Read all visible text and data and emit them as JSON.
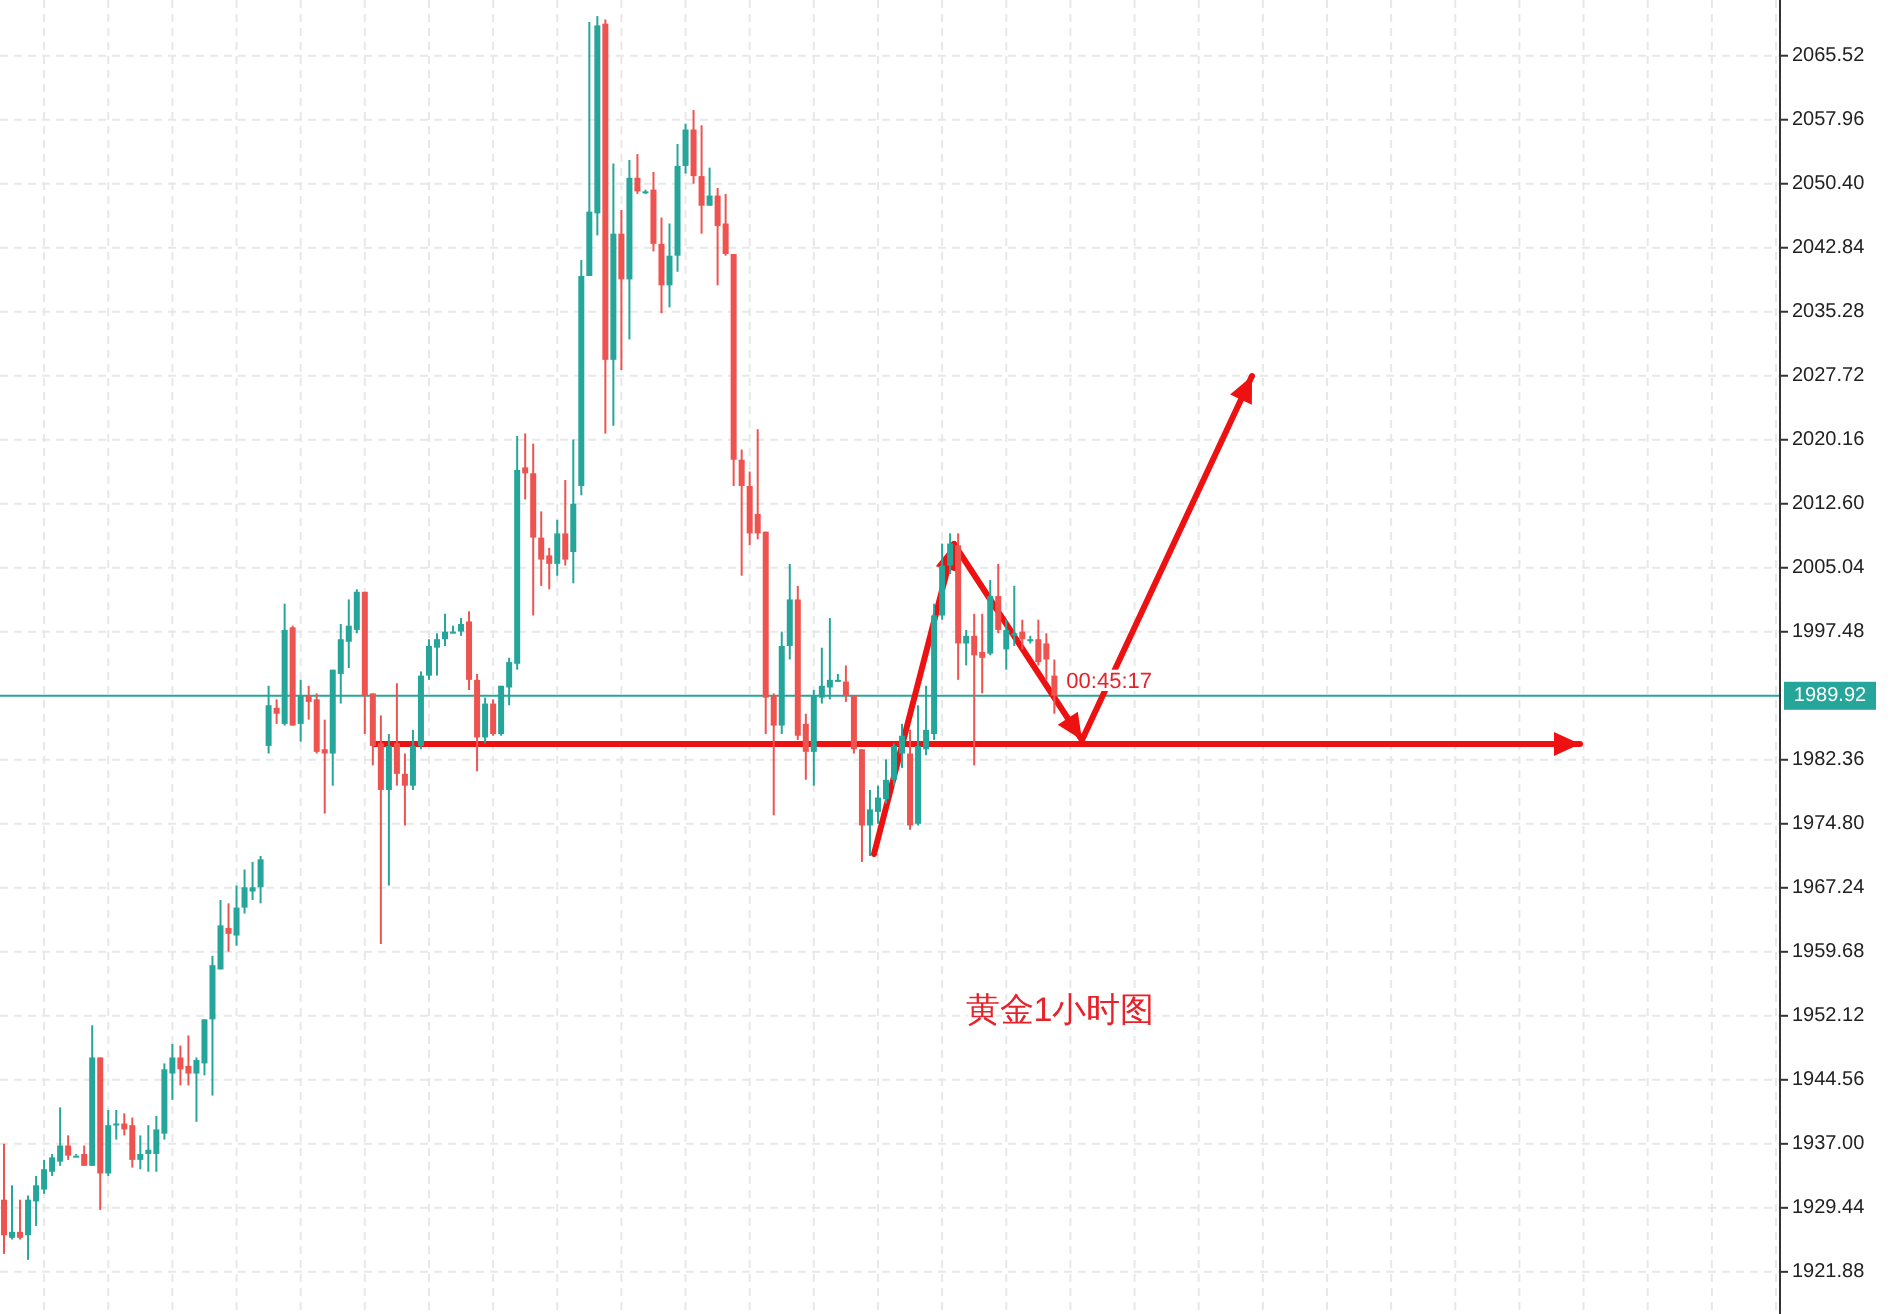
{
  "chart_data": {
    "type": "candlestick",
    "categories": [
      null,
      null,
      null,
      null,
      null,
      null,
      null,
      null,
      null,
      null,
      null,
      null,
      null,
      null,
      null,
      null,
      null,
      null,
      null,
      null,
      null,
      null,
      null,
      null,
      null,
      null,
      null,
      null,
      null,
      null,
      null,
      null,
      null,
      null,
      null,
      null,
      null,
      null,
      null,
      null,
      null,
      null,
      null,
      null,
      null,
      null,
      null,
      null,
      null,
      null,
      null,
      null,
      null,
      null,
      null,
      null,
      null,
      null,
      null,
      null,
      null,
      null,
      null,
      null,
      null,
      null,
      null,
      null,
      null,
      null,
      null,
      null,
      null,
      null,
      null,
      null,
      null,
      null,
      null,
      null,
      null,
      null,
      null,
      null,
      null,
      null,
      null,
      null,
      null,
      null,
      null,
      null,
      null,
      null,
      null,
      null,
      null,
      null,
      null,
      null,
      null,
      null,
      null,
      null,
      null,
      null,
      null,
      null,
      null,
      null,
      null,
      null,
      null,
      null,
      null,
      null,
      null,
      null,
      null,
      null,
      null,
      null,
      null,
      null,
      null,
      null,
      null,
      null,
      null,
      null,
      null,
      null,
      null,
      null,
      null,
      null,
      null,
      null,
      null,
      null,
      null,
      null,
      null,
      null,
      null,
      null,
      null,
      null,
      null,
      null,
      null,
      null,
      null,
      null,
      null,
      null,
      null,
      null,
      null,
      null,
      null,
      null,
      null,
      null,
      null,
      null,
      null,
      null,
      null,
      null,
      null,
      null,
      null,
      null,
      null,
      null,
      null,
      null,
      null,
      null,
      null,
      null,
      null,
      null,
      null,
      null,
      null,
      null,
      null,
      null,
      null,
      null,
      null,
      null,
      null,
      null,
      null,
      null,
      null,
      null,
      null,
      null,
      null,
      null,
      null,
      null,
      null,
      null,
      null,
      null,
      null,
      null,
      null,
      null,
      null,
      null,
      null,
      null,
      null,
      null,
      null,
      null
    ],
    "ohlc": [
      [
        1930.4,
        1937.0,
        1924.0,
        1926.2
      ],
      [
        1925.9,
        1932.1,
        1925.7,
        1926.6
      ],
      [
        1926.6,
        1930.4,
        1925.7,
        1925.9
      ],
      [
        1926.2,
        1930.9,
        1923.3,
        1930.4
      ],
      [
        1930.2,
        1933.2,
        1927.3,
        1932.1
      ],
      [
        1931.6,
        1935.1,
        1931.1,
        1934.0
      ],
      [
        1933.7,
        1935.8,
        1933.2,
        1935.4
      ],
      [
        1934.9,
        1941.3,
        1934.4,
        1936.8
      ],
      [
        1936.8,
        1938.0,
        1935.1,
        1935.6
      ],
      [
        1935.6,
        1935.8,
        1935.6,
        1935.6
      ],
      [
        1935.8,
        1936.8,
        1934.4,
        1934.4
      ],
      [
        1934.4,
        1951.0,
        1934.4,
        1947.2
      ],
      [
        1947.2,
        1947.2,
        1929.2,
        1933.5
      ],
      [
        1933.5,
        1941.0,
        1933.2,
        1939.2
      ],
      [
        1939.2,
        1941.0,
        1937.5,
        1939.4
      ],
      [
        1939.4,
        1940.6,
        1938.0,
        1938.7
      ],
      [
        1939.2,
        1940.1,
        1934.2,
        1935.1
      ],
      [
        1935.1,
        1938.0,
        1934.0,
        1935.8
      ],
      [
        1935.8,
        1939.2,
        1933.7,
        1936.3
      ],
      [
        1935.8,
        1940.3,
        1933.7,
        1938.7
      ],
      [
        1938.2,
        1946.5,
        1937.5,
        1945.8
      ],
      [
        1945.3,
        1948.8,
        1942.2,
        1947.2
      ],
      [
        1947.2,
        1948.6,
        1943.9,
        1945.8
      ],
      [
        1946.2,
        1949.8,
        1943.9,
        1945.3
      ],
      [
        1945.3,
        1947.2,
        1939.6,
        1946.9
      ],
      [
        1946.5,
        1951.7,
        1945.1,
        1951.7
      ],
      [
        1951.7,
        1959.2,
        1942.7,
        1958.1
      ],
      [
        1957.6,
        1965.8,
        1957.6,
        1962.8
      ],
      [
        1962.5,
        1965.4,
        1959.7,
        1961.8
      ],
      [
        1961.6,
        1967.5,
        1960.4,
        1964.9
      ],
      [
        1964.9,
        1969.4,
        1964.2,
        1967.3
      ],
      [
        1966.8,
        1970.3,
        1965.8,
        1967.3
      ],
      [
        1967.3,
        1971.0,
        1965.4,
        1970.6
      ],
      [
        1984.0,
        1991.1,
        1983.1,
        1988.8
      ],
      [
        1988.5,
        1989.5,
        1986.6,
        1987.8
      ],
      [
        1986.6,
        2000.8,
        1986.4,
        1997.7
      ],
      [
        1998.0,
        1998.2,
        1986.4,
        1986.4
      ],
      [
        1986.6,
        1991.8,
        1984.5,
        1989.9
      ],
      [
        1989.9,
        1991.1,
        1987.1,
        1989.2
      ],
      [
        1989.5,
        1990.2,
        1983.1,
        1983.3
      ],
      [
        1983.6,
        1987.1,
        1976.0,
        1983.1
      ],
      [
        1983.1,
        1993.0,
        1979.3,
        1993.0
      ],
      [
        1992.5,
        1998.4,
        1989.0,
        1996.6
      ],
      [
        1996.3,
        2001.3,
        1993.2,
        1998.2
      ],
      [
        1997.7,
        2002.5,
        1997.3,
        2002.2
      ],
      [
        2002.2,
        2002.2,
        1985.4,
        1989.9
      ],
      [
        1990.2,
        1990.2,
        1981.7,
        1984.0
      ],
      [
        1984.3,
        1987.6,
        1960.6,
        1978.8
      ],
      [
        1978.8,
        1985.4,
        1967.5,
        1984.0
      ],
      [
        1984.3,
        1991.4,
        1979.3,
        1980.7
      ],
      [
        1980.7,
        1983.1,
        1974.6,
        1979.3
      ],
      [
        1979.3,
        1985.9,
        1978.8,
        1984.0
      ],
      [
        1984.0,
        1992.8,
        1983.6,
        1992.3
      ],
      [
        1992.3,
        1996.6,
        1991.8,
        1995.8
      ],
      [
        1995.6,
        1997.3,
        1992.3,
        1996.6
      ],
      [
        1996.6,
        1999.6,
        1995.8,
        1997.5
      ],
      [
        1997.5,
        1998.2,
        1997.3,
        1997.5
      ],
      [
        1997.5,
        1999.1,
        1997.0,
        1998.4
      ],
      [
        1998.7,
        1999.9,
        1990.6,
        1991.8
      ],
      [
        1991.8,
        1992.5,
        1981.0,
        1985.0
      ],
      [
        1985.0,
        1989.7,
        1984.3,
        1989.0
      ],
      [
        1989.0,
        1989.5,
        1985.2,
        1985.4
      ],
      [
        1985.4,
        1991.1,
        1985.2,
        1991.1
      ],
      [
        1990.9,
        1994.4,
        1988.8,
        1993.9
      ],
      [
        1993.7,
        2020.6,
        1993.0,
        2016.6
      ],
      [
        2016.9,
        2020.9,
        2013.1,
        2016.2
      ],
      [
        2016.2,
        2019.7,
        1999.4,
        2008.6
      ],
      [
        2008.6,
        2011.7,
        2002.9,
        2006.0
      ],
      [
        2006.5,
        2007.4,
        2002.5,
        2005.5
      ],
      [
        2005.5,
        2010.7,
        2004.1,
        2009.1
      ],
      [
        2009.1,
        2015.4,
        2005.3,
        2006.0
      ],
      [
        2006.9,
        2020.2,
        2003.2,
        2012.6
      ],
      [
        2014.7,
        2041.4,
        2013.6,
        2039.5
      ],
      [
        2039.5,
        2069.5,
        2039.5,
        2047.1
      ],
      [
        2046.9,
        2070.2,
        2044.3,
        2069.1
      ],
      [
        2069.3,
        2069.8,
        2020.9,
        2029.6
      ],
      [
        2029.6,
        2052.8,
        2021.8,
        2044.5
      ],
      [
        2044.5,
        2047.3,
        2028.4,
        2039.1
      ],
      [
        2039.1,
        2053.2,
        2032.0,
        2051.1
      ],
      [
        2051.1,
        2053.9,
        2049.2,
        2049.5
      ],
      [
        2049.5,
        2049.7,
        2049.2,
        2049.5
      ],
      [
        2049.7,
        2051.8,
        2042.4,
        2043.3
      ],
      [
        2043.3,
        2046.4,
        2035.1,
        2038.4
      ],
      [
        2038.4,
        2045.7,
        2035.8,
        2041.9
      ],
      [
        2041.9,
        2055.1,
        2040.0,
        2052.5
      ],
      [
        2052.5,
        2057.5,
        2051.6,
        2056.8
      ],
      [
        2056.8,
        2059.1,
        2050.4,
        2051.3
      ],
      [
        2051.3,
        2057.3,
        2044.5,
        2047.8
      ],
      [
        2047.8,
        2052.3,
        2047.8,
        2049.0
      ],
      [
        2049.0,
        2049.9,
        2038.4,
        2045.4
      ],
      [
        2045.7,
        2049.2,
        2041.9,
        2042.1
      ],
      [
        2042.1,
        2042.1,
        2014.7,
        2017.8
      ],
      [
        2017.8,
        2019.0,
        2004.1,
        2014.7
      ],
      [
        2014.7,
        2016.4,
        2007.7,
        2009.1
      ],
      [
        2011.4,
        2021.4,
        2008.4,
        2009.1
      ],
      [
        2009.3,
        2009.3,
        1985.4,
        1989.7
      ],
      [
        1989.9,
        1990.2,
        1975.8,
        1986.4
      ],
      [
        1986.4,
        1997.5,
        1985.4,
        1995.8
      ],
      [
        1995.8,
        2005.5,
        1994.2,
        2001.3
      ],
      [
        2001.3,
        2002.9,
        1984.7,
        1985.2
      ],
      [
        1986.6,
        1987.8,
        1980.0,
        1983.3
      ],
      [
        1983.3,
        1990.6,
        1979.3,
        1989.9
      ],
      [
        1989.7,
        1995.6,
        1989.0,
        1991.1
      ],
      [
        1990.9,
        1999.1,
        1989.5,
        1991.8
      ],
      [
        1991.8,
        1992.5,
        1991.6,
        1991.8
      ],
      [
        1991.6,
        1993.5,
        1989.2,
        1989.9
      ],
      [
        1989.9,
        1989.9,
        1983.1,
        1983.6
      ],
      [
        1983.6,
        1983.6,
        1970.3,
        1974.6
      ],
      [
        1974.6,
        1978.8,
        1971.0,
        1976.5
      ],
      [
        1976.2,
        1979.3,
        1974.8,
        1977.9
      ],
      [
        1977.7,
        1982.4,
        1977.2,
        1980.0
      ],
      [
        1980.0,
        1984.3,
        1979.3,
        1984.0
      ],
      [
        1983.1,
        1986.6,
        1981.4,
        1985.2
      ],
      [
        1983.1,
        1985.9,
        1974.1,
        1974.6
      ],
      [
        1974.8,
        1988.8,
        1974.6,
        1984.0
      ],
      [
        1983.6,
        1991.1,
        1982.9,
        1985.9
      ],
      [
        1985.4,
        2000.8,
        1984.7,
        1999.4
      ],
      [
        1999.4,
        2007.9,
        1998.9,
        2005.3
      ],
      [
        2005.3,
        2009.1,
        2004.3,
        2007.9
      ],
      [
        2007.7,
        2009.1,
        1991.8,
        1996.1
      ],
      [
        1996.1,
        1997.7,
        1993.5,
        1997.0
      ],
      [
        1997.0,
        1999.6,
        1981.7,
        1994.7
      ],
      [
        1995.1,
        1999.6,
        1990.2,
        1994.4
      ],
      [
        1994.9,
        2003.6,
        1994.7,
        2001.7
      ],
      [
        2001.7,
        2005.5,
        1997.3,
        1997.7
      ],
      [
        1995.4,
        1998.9,
        1993.0,
        1997.7
      ],
      [
        1997.0,
        2002.9,
        1995.8,
        1997.3
      ],
      [
        1997.5,
        1998.9,
        1995.4,
        1996.6
      ],
      [
        1996.6,
        1997.0,
        1996.1,
        1996.6
      ],
      [
        1996.6,
        1998.9,
        1993.5,
        1993.9
      ],
      [
        1996.1,
        1997.3,
        1991.8,
        1994.2
      ],
      [
        1992.3,
        1994.2,
        1987.8,
        1989.92
      ],
      null,
      null,
      null,
      null,
      null,
      null,
      null,
      null,
      null,
      null,
      null,
      null,
      null,
      null,
      null,
      null,
      null,
      null,
      null,
      null,
      null,
      null,
      null,
      null,
      null,
      null,
      null,
      null,
      null,
      null,
      null,
      null,
      null,
      null,
      null,
      null,
      null,
      null,
      null,
      null,
      null,
      null,
      null,
      null,
      null,
      null,
      null,
      null,
      null,
      null,
      null,
      null,
      null,
      null,
      null,
      null,
      null,
      null,
      null,
      null,
      null,
      null,
      null,
      null,
      null,
      null,
      null,
      null,
      null,
      null,
      null,
      null,
      null,
      null,
      null,
      null,
      null,
      null,
      null,
      null,
      null,
      null,
      null,
      null,
      null,
      null,
      null,
      null,
      null,
      null
    ],
    "colors": [
      "#ef5350",
      "#26a69a",
      "#ef5350",
      "#26a69a",
      "#26a69a",
      "#26a69a",
      "#26a69a",
      "#26a69a",
      "#ef5350",
      "#26a69a",
      "#ef5350",
      "#26a69a",
      "#ef5350",
      "#26a69a",
      "#26a69a",
      "#ef5350",
      "#ef5350",
      "#26a69a",
      "#26a69a",
      "#26a69a",
      "#26a69a",
      "#26a69a",
      "#ef5350",
      "#ef5350",
      "#26a69a",
      "#26a69a",
      "#26a69a",
      "#26a69a",
      "#ef5350",
      "#26a69a",
      "#26a69a",
      "#26a69a",
      "#26a69a",
      "#26a69a",
      "#ef5350",
      "#26a69a",
      "#ef5350",
      "#26a69a",
      "#ef5350",
      "#ef5350",
      "#ef5350",
      "#26a69a",
      "#26a69a",
      "#26a69a",
      "#26a69a",
      "#ef5350",
      "#ef5350",
      "#ef5350",
      "#26a69a",
      "#ef5350",
      "#ef5350",
      "#26a69a",
      "#26a69a",
      "#26a69a",
      "#26a69a",
      "#26a69a",
      "#26a69a",
      "#26a69a",
      "#ef5350",
      "#ef5350",
      "#26a69a",
      "#ef5350",
      "#26a69a",
      "#26a69a",
      "#26a69a",
      "#ef5350",
      "#ef5350",
      "#ef5350",
      "#ef5350",
      "#26a69a",
      "#ef5350",
      "#26a69a",
      "#26a69a",
      "#26a69a",
      "#26a69a",
      "#ef5350",
      "#26a69a",
      "#ef5350",
      "#26a69a",
      "#ef5350",
      "#26a69a",
      "#ef5350",
      "#ef5350",
      "#26a69a",
      "#26a69a",
      "#26a69a",
      "#ef5350",
      "#ef5350",
      "#26a69a",
      "#ef5350",
      "#ef5350",
      "#ef5350",
      "#ef5350",
      "#ef5350",
      "#ef5350",
      "#ef5350",
      "#ef5350",
      "#26a69a",
      "#26a69a",
      "#ef5350",
      "#ef5350",
      "#26a69a",
      "#26a69a",
      "#26a69a",
      "#26a69a",
      "#ef5350",
      "#ef5350",
      "#ef5350",
      "#26a69a",
      "#26a69a",
      "#26a69a",
      "#26a69a",
      "#26a69a",
      "#ef5350",
      "#26a69a",
      "#26a69a",
      "#26a69a",
      "#26a69a",
      "#26a69a",
      "#ef5350",
      "#26a69a",
      "#ef5350",
      "#ef5350",
      "#26a69a",
      "#ef5350",
      "#26a69a",
      "#26a69a",
      "#ef5350",
      "#26a69a",
      "#ef5350",
      "#ef5350",
      "#ef5350",
      null,
      null,
      null,
      null,
      null,
      null,
      null,
      null,
      null,
      null,
      null,
      null,
      null,
      null,
      null,
      null,
      null,
      null,
      null,
      null,
      null,
      null,
      null,
      null,
      null,
      null,
      null,
      null,
      null,
      null,
      null,
      null,
      null,
      null,
      null,
      null,
      null,
      null,
      null,
      null,
      null,
      null,
      null,
      null,
      null,
      null,
      null,
      null,
      null,
      null,
      null,
      null,
      null,
      null,
      null,
      null,
      null,
      null,
      null,
      null,
      null,
      null,
      null,
      null,
      null,
      null,
      null,
      null,
      null,
      null,
      null,
      null,
      null,
      null,
      null,
      null,
      null,
      null,
      null,
      null,
      null,
      null,
      null,
      null,
      null,
      null,
      null,
      null,
      null,
      null
    ],
    "ylim": [
      1916.9,
      2072.1
    ],
    "yticks": [
      {
        "value": 1921.88,
        "label": "1921.88"
      },
      {
        "value": 1929.44,
        "label": "1929.44"
      },
      {
        "value": 1937,
        "label": "1937.00"
      },
      {
        "value": 1944.56,
        "label": "1944.56"
      },
      {
        "value": 1952.12,
        "label": "1952.12"
      },
      {
        "value": 1959.68,
        "label": "1959.68"
      },
      {
        "value": 1967.24,
        "label": "1967.24"
      },
      {
        "value": 1974.8,
        "label": "1974.80"
      },
      {
        "value": 1982.36,
        "label": "1982.36"
      },
      {
        "value": 1997.48,
        "label": "1997.48"
      },
      {
        "value": 2005.04,
        "label": "2005.04"
      },
      {
        "value": 2012.6,
        "label": "2012.60"
      },
      {
        "value": 2020.16,
        "label": "2020.16"
      },
      {
        "value": 2027.72,
        "label": "2027.72"
      },
      {
        "value": 2035.28,
        "label": "2035.28"
      },
      {
        "value": 2042.84,
        "label": "2042.84"
      },
      {
        "value": 2050.4,
        "label": "2050.40"
      },
      {
        "value": 2057.96,
        "label": "2057.96"
      },
      {
        "value": 2065.52,
        "label": "2065.52"
      }
    ],
    "ref_lines": [
      {
        "axis": "y",
        "value": 1989.92,
        "label": "1989.92",
        "color": "#26a69a"
      }
    ],
    "annotations": [
      "00:45:17",
      "黄金1小时图"
    ],
    "grid": true
  }
}
